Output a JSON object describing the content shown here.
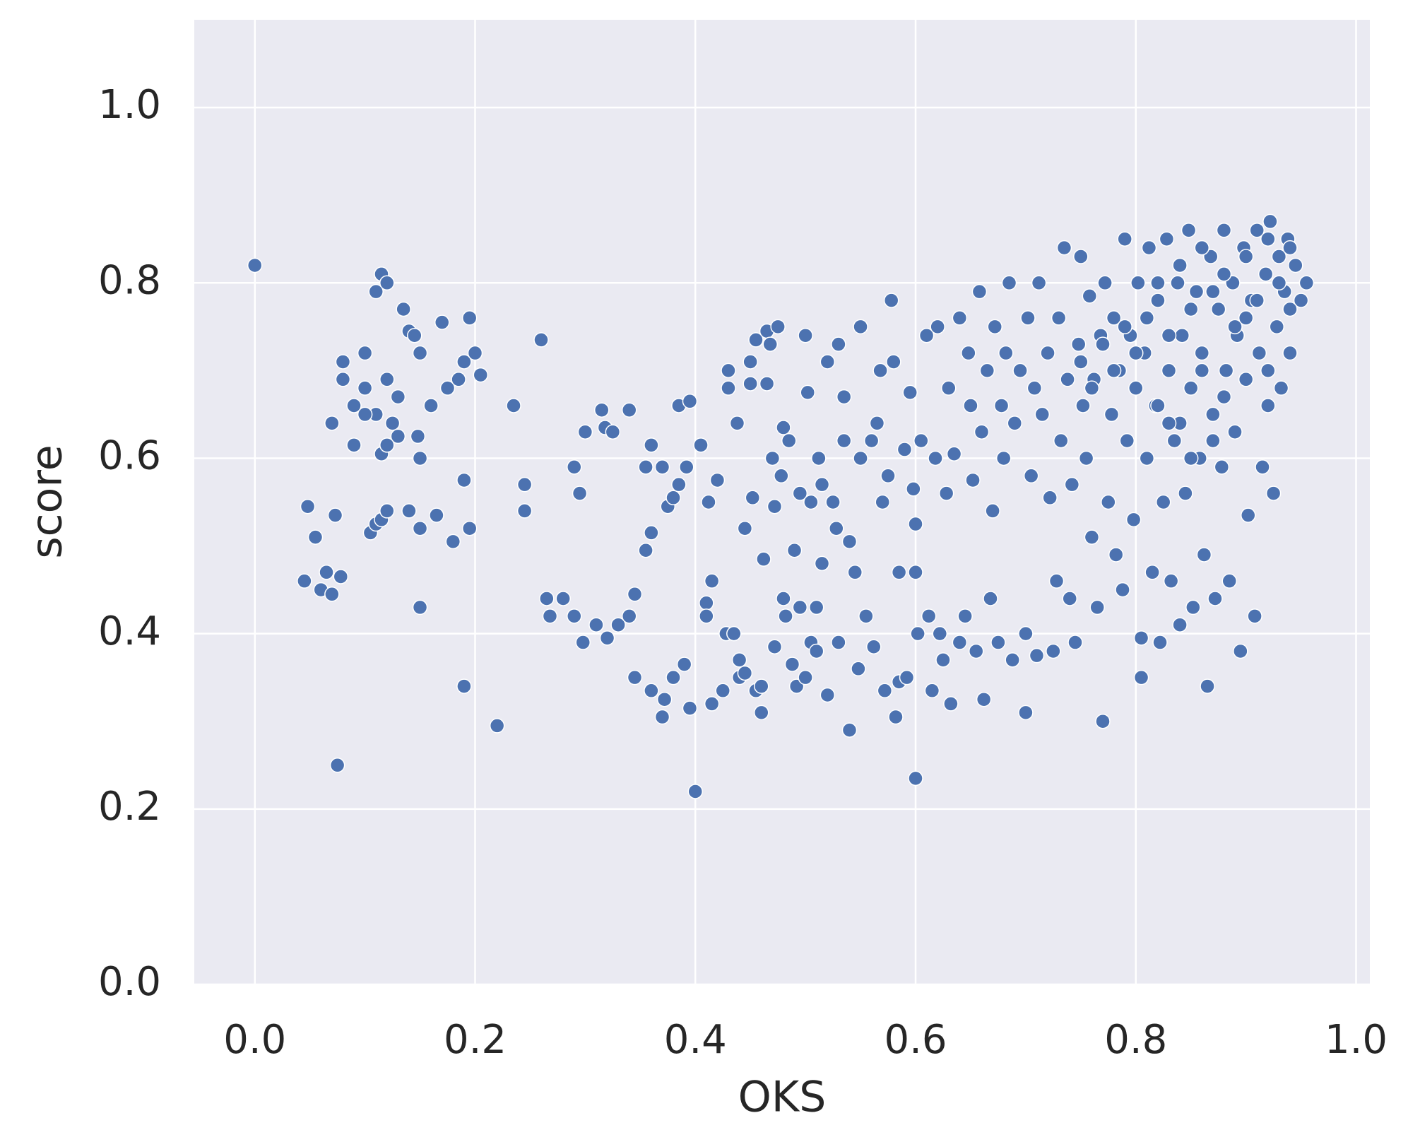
{
  "chart_data": {
    "type": "scatter",
    "xlabel": "OKS",
    "ylabel": "score",
    "color": "#4c72b0",
    "grid": true,
    "xlim": [
      -0.055,
      1.0125
    ],
    "ylim": [
      0,
      1.1
    ],
    "xticks": [
      {
        "value": 0,
        "label": "0.0"
      },
      0.2,
      0.4,
      0.6,
      0.8,
      {
        "value": 1,
        "label": "1.0"
      }
    ],
    "yticks": [
      {
        "value": 0,
        "label": "0.0"
      },
      0.2,
      0.4,
      0.6,
      0.8,
      {
        "value": 1,
        "label": "1.0"
      }
    ],
    "x": [
      0.0,
      0.075,
      0.4,
      0.6,
      0.22,
      0.19,
      0.15,
      0.045,
      0.048,
      0.055,
      0.06,
      0.065,
      0.07,
      0.073,
      0.078,
      0.07,
      0.08,
      0.09,
      0.1,
      0.105,
      0.11,
      0.115,
      0.12,
      0.115,
      0.12,
      0.11,
      0.125,
      0.13,
      0.135,
      0.14,
      0.145,
      0.15,
      0.15,
      0.15,
      0.16,
      0.165,
      0.17,
      0.175,
      0.18,
      0.185,
      0.19,
      0.19,
      0.195,
      0.195,
      0.2,
      0.205,
      0.08,
      0.1,
      0.11,
      0.12,
      0.13,
      0.14,
      0.148,
      0.09,
      0.1,
      0.115,
      0.12,
      0.235,
      0.245,
      0.245,
      0.26,
      0.265,
      0.268,
      0.28,
      0.29,
      0.29,
      0.295,
      0.298,
      0.3,
      0.31,
      0.315,
      0.318,
      0.32,
      0.325,
      0.33,
      0.34,
      0.34,
      0.345,
      0.345,
      0.355,
      0.355,
      0.36,
      0.36,
      0.36,
      0.37,
      0.37,
      0.372,
      0.375,
      0.38,
      0.38,
      0.385,
      0.385,
      0.39,
      0.392,
      0.395,
      0.395,
      0.405,
      0.41,
      0.41,
      0.412,
      0.415,
      0.415,
      0.42,
      0.425,
      0.428,
      0.43,
      0.43,
      0.435,
      0.438,
      0.44,
      0.44,
      0.445,
      0.445,
      0.45,
      0.45,
      0.452,
      0.455,
      0.455,
      0.46,
      0.46,
      0.462,
      0.465,
      0.465,
      0.468,
      0.47,
      0.472,
      0.472,
      0.475,
      0.478,
      0.48,
      0.48,
      0.482,
      0.485,
      0.488,
      0.49,
      0.492,
      0.495,
      0.495,
      0.5,
      0.5,
      0.502,
      0.505,
      0.505,
      0.51,
      0.51,
      0.512,
      0.515,
      0.515,
      0.52,
      0.52,
      0.525,
      0.528,
      0.53,
      0.53,
      0.535,
      0.535,
      0.54,
      0.54,
      0.545,
      0.548,
      0.55,
      0.55,
      0.555,
      0.56,
      0.562,
      0.565,
      0.568,
      0.57,
      0.572,
      0.575,
      0.578,
      0.58,
      0.582,
      0.585,
      0.585,
      0.59,
      0.592,
      0.595,
      0.598,
      0.6,
      0.6,
      0.602,
      0.605,
      0.61,
      0.612,
      0.615,
      0.618,
      0.62,
      0.622,
      0.625,
      0.628,
      0.63,
      0.632,
      0.635,
      0.64,
      0.64,
      0.645,
      0.648,
      0.65,
      0.652,
      0.655,
      0.658,
      0.66,
      0.662,
      0.665,
      0.668,
      0.67,
      0.672,
      0.675,
      0.678,
      0.68,
      0.682,
      0.685,
      0.688,
      0.69,
      0.695,
      0.7,
      0.7,
      0.702,
      0.705,
      0.708,
      0.71,
      0.712,
      0.715,
      0.72,
      0.722,
      0.725,
      0.728,
      0.73,
      0.732,
      0.735,
      0.738,
      0.74,
      0.742,
      0.745,
      0.748,
      0.75,
      0.752,
      0.755,
      0.758,
      0.76,
      0.762,
      0.765,
      0.768,
      0.77,
      0.772,
      0.775,
      0.778,
      0.78,
      0.782,
      0.785,
      0.788,
      0.79,
      0.792,
      0.795,
      0.798,
      0.8,
      0.802,
      0.805,
      0.805,
      0.808,
      0.81,
      0.812,
      0.815,
      0.818,
      0.82,
      0.822,
      0.825,
      0.828,
      0.83,
      0.832,
      0.835,
      0.838,
      0.84,
      0.842,
      0.845,
      0.848,
      0.85,
      0.852,
      0.855,
      0.858,
      0.86,
      0.862,
      0.865,
      0.868,
      0.87,
      0.872,
      0.875,
      0.878,
      0.88,
      0.882,
      0.885,
      0.888,
      0.89,
      0.892,
      0.895,
      0.898,
      0.9,
      0.902,
      0.905,
      0.908,
      0.91,
      0.912,
      0.915,
      0.918,
      0.92,
      0.922,
      0.925,
      0.928,
      0.93,
      0.932,
      0.935,
      0.938,
      0.94,
      0.945,
      0.95,
      0.955,
      0.81,
      0.82,
      0.83,
      0.84,
      0.85,
      0.86,
      0.87,
      0.88,
      0.89,
      0.9,
      0.91,
      0.92,
      0.93,
      0.94,
      0.8,
      0.79,
      0.78,
      0.77,
      0.76,
      0.75,
      0.82,
      0.84,
      0.86,
      0.88,
      0.9,
      0.92,
      0.94,
      0.87,
      0.85,
      0.83
    ],
    "values": [
      0.82,
      0.25,
      0.22,
      0.235,
      0.295,
      0.34,
      0.43,
      0.46,
      0.545,
      0.51,
      0.45,
      0.47,
      0.445,
      0.535,
      0.465,
      0.64,
      0.71,
      0.615,
      0.72,
      0.515,
      0.525,
      0.53,
      0.54,
      0.81,
      0.8,
      0.79,
      0.64,
      0.67,
      0.77,
      0.745,
      0.74,
      0.72,
      0.6,
      0.52,
      0.66,
      0.535,
      0.755,
      0.68,
      0.505,
      0.69,
      0.71,
      0.575,
      0.52,
      0.76,
      0.72,
      0.695,
      0.69,
      0.68,
      0.65,
      0.69,
      0.625,
      0.54,
      0.625,
      0.66,
      0.65,
      0.605,
      0.615,
      0.66,
      0.57,
      0.54,
      0.735,
      0.44,
      0.42,
      0.44,
      0.59,
      0.42,
      0.56,
      0.39,
      0.63,
      0.41,
      0.655,
      0.635,
      0.395,
      0.63,
      0.41,
      0.655,
      0.42,
      0.445,
      0.35,
      0.495,
      0.59,
      0.515,
      0.615,
      0.335,
      0.59,
      0.305,
      0.325,
      0.545,
      0.555,
      0.35,
      0.57,
      0.66,
      0.365,
      0.59,
      0.665,
      0.315,
      0.615,
      0.435,
      0.42,
      0.55,
      0.46,
      0.32,
      0.575,
      0.335,
      0.4,
      0.7,
      0.68,
      0.4,
      0.64,
      0.35,
      0.37,
      0.355,
      0.52,
      0.71,
      0.685,
      0.555,
      0.735,
      0.335,
      0.34,
      0.31,
      0.485,
      0.745,
      0.685,
      0.73,
      0.6,
      0.385,
      0.545,
      0.75,
      0.58,
      0.635,
      0.44,
      0.42,
      0.62,
      0.365,
      0.495,
      0.34,
      0.56,
      0.43,
      0.74,
      0.35,
      0.675,
      0.39,
      0.55,
      0.43,
      0.38,
      0.6,
      0.48,
      0.57,
      0.71,
      0.33,
      0.55,
      0.52,
      0.73,
      0.39,
      0.67,
      0.62,
      0.29,
      0.505,
      0.47,
      0.36,
      0.75,
      0.6,
      0.42,
      0.62,
      0.385,
      0.64,
      0.7,
      0.55,
      0.335,
      0.58,
      0.78,
      0.71,
      0.305,
      0.47,
      0.345,
      0.61,
      0.35,
      0.675,
      0.565,
      0.47,
      0.525,
      0.4,
      0.62,
      0.74,
      0.42,
      0.335,
      0.6,
      0.75,
      0.4,
      0.37,
      0.56,
      0.68,
      0.32,
      0.605,
      0.76,
      0.39,
      0.42,
      0.72,
      0.66,
      0.575,
      0.38,
      0.79,
      0.63,
      0.325,
      0.7,
      0.44,
      0.54,
      0.75,
      0.39,
      0.66,
      0.6,
      0.72,
      0.8,
      0.37,
      0.64,
      0.7,
      0.31,
      0.4,
      0.76,
      0.58,
      0.68,
      0.375,
      0.8,
      0.65,
      0.72,
      0.555,
      0.38,
      0.46,
      0.76,
      0.62,
      0.84,
      0.69,
      0.44,
      0.57,
      0.39,
      0.73,
      0.83,
      0.66,
      0.6,
      0.785,
      0.51,
      0.69,
      0.43,
      0.74,
      0.3,
      0.8,
      0.55,
      0.65,
      0.76,
      0.49,
      0.7,
      0.45,
      0.85,
      0.62,
      0.74,
      0.53,
      0.68,
      0.8,
      0.35,
      0.395,
      0.72,
      0.6,
      0.84,
      0.47,
      0.66,
      0.78,
      0.39,
      0.55,
      0.85,
      0.7,
      0.46,
      0.62,
      0.8,
      0.41,
      0.74,
      0.56,
      0.86,
      0.68,
      0.43,
      0.79,
      0.6,
      0.72,
      0.49,
      0.34,
      0.83,
      0.65,
      0.44,
      0.77,
      0.59,
      0.86,
      0.7,
      0.46,
      0.8,
      0.63,
      0.74,
      0.38,
      0.84,
      0.69,
      0.535,
      0.78,
      0.42,
      0.86,
      0.72,
      0.59,
      0.81,
      0.66,
      0.87,
      0.56,
      0.75,
      0.83,
      0.68,
      0.79,
      0.85,
      0.72,
      0.82,
      0.78,
      0.8,
      0.76,
      0.8,
      0.74,
      0.82,
      0.77,
      0.84,
      0.79,
      0.81,
      0.75,
      0.83,
      0.78,
      0.85,
      0.8,
      0.84,
      0.72,
      0.75,
      0.7,
      0.73,
      0.68,
      0.71,
      0.66,
      0.64,
      0.7,
      0.67,
      0.76,
      0.7,
      0.77,
      0.62,
      0.6,
      0.64
    ]
  }
}
